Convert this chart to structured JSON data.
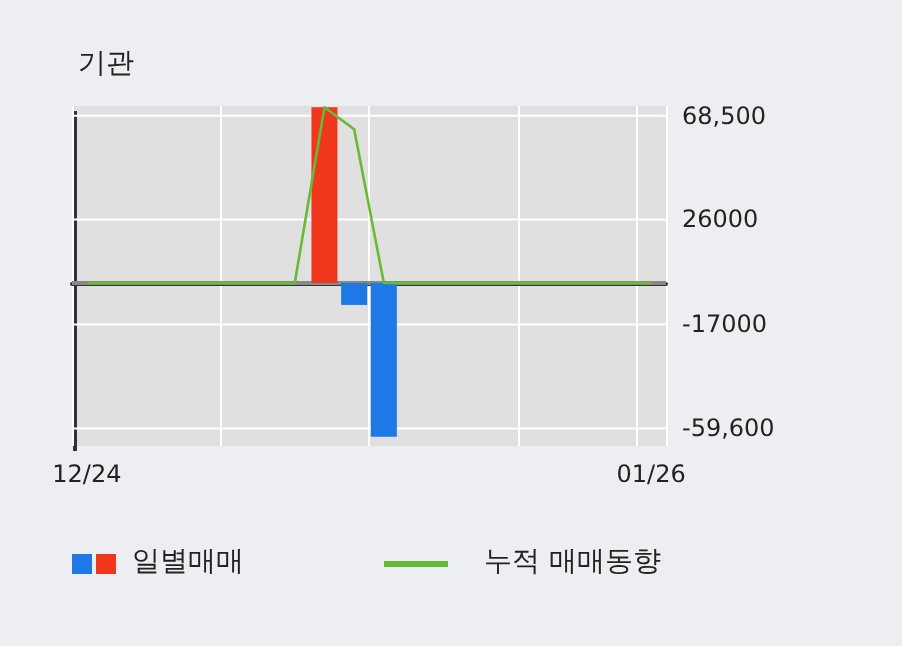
{
  "chart_data": {
    "type": "bar",
    "title": "기관",
    "categories": [
      "12/24",
      null,
      null,
      null,
      null,
      null,
      null,
      null,
      null,
      null,
      null,
      null,
      null,
      null,
      null,
      null,
      null,
      null,
      null,
      "01/26"
    ],
    "series": [
      {
        "name": "일별매매",
        "colors": [
          null,
          null,
          null,
          null,
          null,
          null,
          null,
          null,
          "#f0361c",
          "#1e78e6",
          "#1e78e6",
          null,
          null,
          null,
          null,
          null,
          null,
          null,
          null,
          null
        ],
        "values": [
          0,
          0,
          0,
          0,
          0,
          0,
          0,
          0,
          72000,
          -9000,
          -63000,
          0,
          0,
          0,
          0,
          0,
          0,
          0,
          0,
          0
        ]
      },
      {
        "name": "누적 매매동향",
        "type": "line",
        "color": "#66bb33",
        "values": [
          0,
          0,
          0,
          0,
          0,
          0,
          0,
          0,
          72000,
          63000,
          0,
          0,
          0,
          0,
          0,
          0,
          0,
          0,
          0,
          0
        ]
      }
    ],
    "ylim": [
      -66800,
      72500
    ],
    "yticks": [
      {
        "value": 68500,
        "label": "68,500"
      },
      26000,
      -17000,
      {
        "value": -59600,
        "label": "-59,600"
      }
    ],
    "ref_lines": [
      {
        "axis": "y",
        "value": 0,
        "color": "#888888"
      }
    ],
    "grid": true,
    "legend": "bottom",
    "marker": "none"
  }
}
